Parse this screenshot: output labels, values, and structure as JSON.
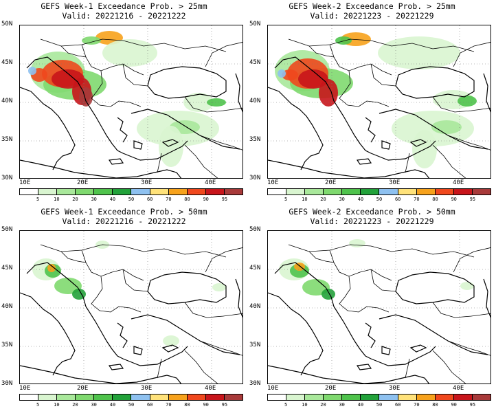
{
  "panels": [
    {
      "title": "GEFS Week-1 Exceedance Prob. > 25mm",
      "valid": "Valid: 20221216 - 20221222",
      "level": "high"
    },
    {
      "title": "GEFS Week-2 Exceedance Prob. > 25mm",
      "valid": "Valid: 20221223 - 20221229",
      "level": "high2"
    },
    {
      "title": "GEFS Week-1 Exceedance Prob. > 50mm",
      "valid": "Valid: 20221216 - 20221222",
      "level": "low"
    },
    {
      "title": "GEFS Week-2 Exceedance Prob. > 50mm",
      "valid": "Valid: 20221223 - 20221229",
      "level": "low2"
    }
  ],
  "map": {
    "lat_labels": [
      "50N",
      "45N",
      "40N",
      "35N",
      "30N"
    ],
    "lon_labels": [
      "10E",
      "20E",
      "30E",
      "40E"
    ],
    "lon_range": [
      10,
      45
    ],
    "lat_range": [
      30,
      50
    ]
  },
  "colorbar": {
    "labels": [
      "5",
      "10",
      "20",
      "30",
      "40",
      "50",
      "60",
      "70",
      "80",
      "90",
      "95"
    ],
    "colors": [
      "#ffffff",
      "#d9f5d0",
      "#a9e89b",
      "#7fd96f",
      "#4fc34c",
      "#22a23a",
      "#8ec1f0",
      "#ffe27a",
      "#f7a21c",
      "#f0481d",
      "#c8151b",
      "#a83a3a"
    ]
  }
}
